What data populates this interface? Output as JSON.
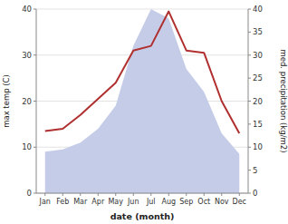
{
  "chart_data": {
    "type": "line",
    "xlabel": "date (month)",
    "ylabel": "max temp (C)",
    "y2label": "med. precipitation (kg/m2)",
    "categories": [
      "Jan",
      "Feb",
      "Mar",
      "Apr",
      "May",
      "Jun",
      "Jul",
      "Aug",
      "Sep",
      "Oct",
      "Nov",
      "Dec"
    ],
    "series": [
      {
        "type": "area",
        "axis": "y2",
        "color": "#c5cce8",
        "values": [
          9.0,
          9.5,
          11.0,
          14.0,
          19.0,
          32.0,
          40.0,
          38.0,
          27.0,
          22.0,
          13.0,
          8.5
        ]
      },
      {
        "type": "line",
        "color": "#b03030",
        "values": [
          13.5,
          14.0,
          17.0,
          20.5,
          24.0,
          31.0,
          32.0,
          39.5,
          31.0,
          30.5,
          20.0,
          13.0
        ]
      }
    ],
    "ylim": [
      0,
      40
    ],
    "yticks": [
      0,
      10,
      20,
      30,
      40
    ],
    "y2lim": [
      0,
      40
    ],
    "y2ticks": [
      0,
      5,
      10,
      15,
      20,
      25,
      30,
      35,
      40
    ],
    "grid": true
  }
}
